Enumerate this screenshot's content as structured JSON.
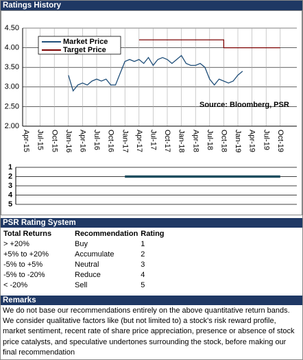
{
  "header": {
    "title": "Ratings History"
  },
  "chart_data": [
    {
      "type": "line",
      "xticks": [
        "Apr-15",
        "Jul-15",
        "Oct-15",
        "Jan-16",
        "Apr-16",
        "Jul-16",
        "Oct-16",
        "Jan-17",
        "Apr-17",
        "Jul-17",
        "Oct-17",
        "Jan-18",
        "Apr-18",
        "Jul-18",
        "Oct-18",
        "Jan-19",
        "Apr-19",
        "Jul-19",
        "Oct-19"
      ],
      "ylim": [
        2,
        4.5
      ],
      "yticks": [
        {
          "value": 2,
          "label": "2.00"
        },
        {
          "value": 2.5,
          "label": "2.50"
        },
        {
          "value": 3,
          "label": "3.00"
        },
        {
          "value": 3.5,
          "label": "3.50"
        },
        {
          "value": 4,
          "label": "4.00"
        },
        {
          "value": 4.5,
          "label": "4.50"
        }
      ],
      "grid": true,
      "legend": "top-left",
      "annotation": "Source: Bloomberg, PSR",
      "series": [
        {
          "name": "Market Price",
          "color": "#1f4e79",
          "x": [
            "Jan-16",
            "Feb-16",
            "Mar-16",
            "Apr-16",
            "May-16",
            "Jun-16",
            "Jul-16",
            "Aug-16",
            "Sep-16",
            "Oct-16",
            "Nov-16",
            "Dec-16",
            "Jan-17",
            "Feb-17",
            "Mar-17",
            "Apr-17",
            "May-17",
            "Jun-17",
            "Jul-17",
            "Aug-17",
            "Sep-17",
            "Oct-17",
            "Nov-17",
            "Dec-17",
            "Jan-18",
            "Feb-18",
            "Mar-18",
            "Apr-18",
            "May-18",
            "Jun-18",
            "Jul-18",
            "Aug-18",
            "Sep-18",
            "Oct-18",
            "Nov-18",
            "Dec-18",
            "Jan-19",
            "Feb-19"
          ],
          "values": [
            3.3,
            2.9,
            3.05,
            3.1,
            3.05,
            3.15,
            3.2,
            3.15,
            3.2,
            3.05,
            3.05,
            3.35,
            3.65,
            3.7,
            3.65,
            3.7,
            3.6,
            3.75,
            3.55,
            3.7,
            3.75,
            3.7,
            3.6,
            3.7,
            3.8,
            3.6,
            3.55,
            3.55,
            3.6,
            3.5,
            3.2,
            3.05,
            3.2,
            3.15,
            3.1,
            3.15,
            3.3,
            3.4
          ]
        },
        {
          "name": "Target Price",
          "color": "#7b0000",
          "x": [
            "Apr-17",
            "Oct-18",
            "Oct-18",
            "Oct-19"
          ],
          "values": [
            4.2,
            4.2,
            4.0,
            4.0
          ]
        }
      ]
    },
    {
      "type": "line",
      "ylim": [
        1,
        5
      ],
      "y_reversed": true,
      "yticks": [
        1,
        2,
        3,
        4,
        5
      ],
      "series": [
        {
          "color": "#1f4e5f",
          "x": [
            "Jan-17",
            "Oct-19"
          ],
          "values": [
            2,
            2
          ]
        }
      ]
    }
  ],
  "rating_system": {
    "title": "PSR Rating System",
    "columns": [
      "Total Returns",
      "Recommendation",
      "Rating"
    ],
    "rows": [
      [
        "> +20%",
        "Buy",
        "1"
      ],
      [
        "+5% to +20%",
        "Accumulate",
        "2"
      ],
      [
        "-5% to +5%",
        "Neutral",
        "3"
      ],
      [
        "-5% to -20%",
        "Reduce",
        "4"
      ],
      [
        "< -20%",
        "Sell",
        "5"
      ]
    ]
  },
  "remarks": {
    "title": "Remarks",
    "text": "We do not base our recommendations entirely on the  above quantitative return bands.  We consider qualitative factors like (but not limited to) a stock's risk reward profile, market sentiment, recent rate of share price appreciation, presence or absence of stock price catalysts, and speculative undertones surrounding the stock, before making our final recommendation"
  }
}
